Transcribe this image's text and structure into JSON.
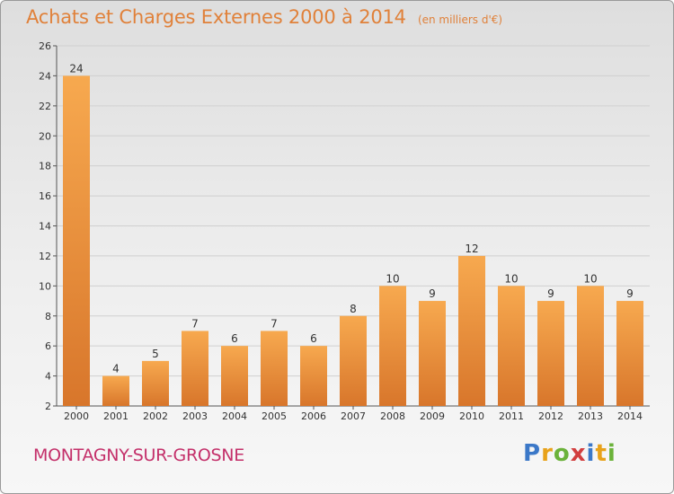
{
  "header": {
    "title": "Achats et Charges Externes 2000 à 2014",
    "subtitle": "(en milliers d'€)"
  },
  "footer": {
    "commune": "MONTAGNY-SUR-GROSNE",
    "logo_letters": [
      "P",
      "r",
      "o",
      "x",
      "i",
      "t",
      "i"
    ],
    "logo_colors": [
      "#3b78c8",
      "#e8a21a",
      "#6bb23a",
      "#d23f3f",
      "#3b78c8",
      "#e8a21a",
      "#6bb23a"
    ]
  },
  "colors": {
    "bar_light": "#f7a94f",
    "bar_dark": "#d8762b",
    "title": "#e0813a",
    "commune": "#c4306a",
    "axis": "#555555",
    "grid": "#d0d0d0"
  },
  "chart_data": {
    "type": "bar",
    "categories": [
      "2000",
      "2001",
      "2002",
      "2003",
      "2004",
      "2005",
      "2006",
      "2007",
      "2008",
      "2009",
      "2010",
      "2011",
      "2012",
      "2013",
      "2014"
    ],
    "values": [
      24,
      4,
      5,
      7,
      6,
      7,
      6,
      8,
      10,
      9,
      12,
      10,
      9,
      10,
      9
    ],
    "ylim": [
      2,
      26
    ],
    "yticks": [
      2,
      4,
      6,
      8,
      10,
      12,
      14,
      16,
      18,
      20,
      22,
      24,
      26
    ],
    "grid": true,
    "title": "Achats et Charges Externes 2000 à 2014",
    "xlabel": "",
    "ylabel": ""
  }
}
